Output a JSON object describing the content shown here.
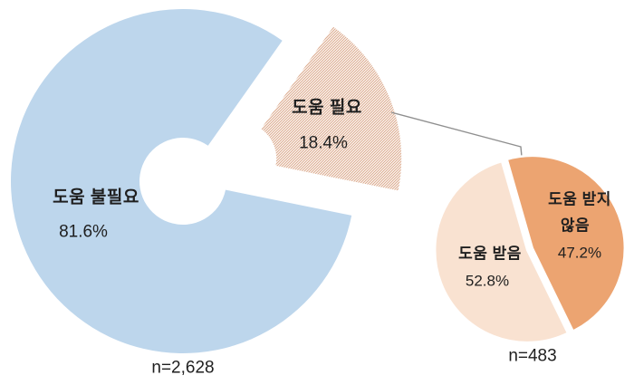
{
  "chart_data": [
    {
      "type": "pie",
      "variant": "donut-with-exploded-hatched-slice",
      "n_label": "n=2,628",
      "n": 2628,
      "legend_position": "none",
      "segments": [
        {
          "label": "도움 불필요",
          "value_pct": 81.6,
          "display": "81.6%",
          "color": "#bdd6ec",
          "pattern": "solid",
          "exploded": false
        },
        {
          "label": "도움 필요",
          "value_pct": 18.4,
          "display": "18.4%",
          "color": "#dcab8e",
          "pattern": "diagonal-hatch",
          "exploded": true
        }
      ]
    },
    {
      "type": "pie",
      "variant": "detail-pie-of-exploded-slice",
      "n_label": "n=483",
      "n": 483,
      "legend_position": "none",
      "segments": [
        {
          "label": "도움 받지 않음",
          "value_pct": 47.2,
          "display": "47.2%",
          "color": "#eca471",
          "pattern": "solid",
          "exploded": false
        },
        {
          "label": "도움 받음",
          "value_pct": 52.8,
          "display": "52.8%",
          "color": "#f9e2d1",
          "pattern": "solid",
          "exploded": false
        }
      ]
    }
  ],
  "labels": {
    "main_cat": "도움 불필요",
    "main_pct": "81.6%",
    "slice_cat": "도움 필요",
    "slice_pct": "18.4%",
    "sub_right_cat_line1": "도움 받지",
    "sub_right_cat_line2": "않음",
    "sub_right_pct": "47.2%",
    "sub_left_cat": "도움 받음",
    "sub_left_pct": "52.8%",
    "main_n": "n=2,628",
    "sub_n": "n=483"
  },
  "colors": {
    "main_slice_blue": "#bdd6ec",
    "hatch_stripe": "#dcab8e",
    "sub_orange": "#eca471",
    "sub_peach": "#f9e2d1",
    "connector_gray": "#8f8f8f",
    "text": "#1f1f1f",
    "background": "#ffffff"
  }
}
